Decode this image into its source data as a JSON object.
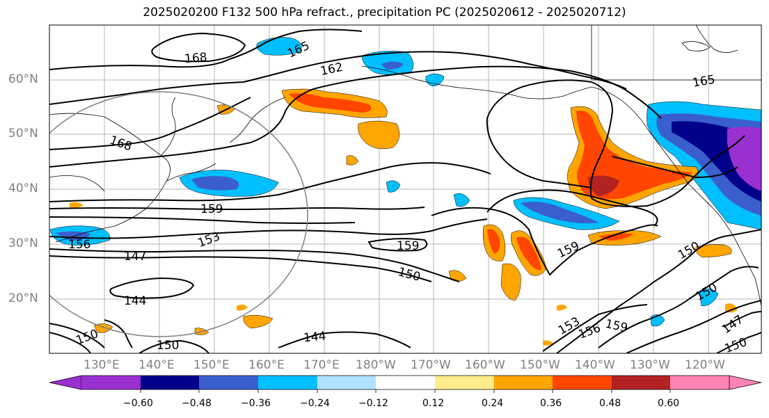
{
  "title": "2025020200 F132 500 hPa refract., precipitation PC (2025020612 - 2025020712)",
  "lat_labels": [
    "60°N",
    "50°N",
    "40°N",
    "30°N",
    "20°N"
  ],
  "lon_labels": [
    "130°E",
    "140°E",
    "150°E",
    "160°E",
    "170°E",
    "180°W",
    "170°W",
    "160°W",
    "150°W",
    "140°W",
    "130°W",
    "120°W"
  ],
  "contour_labels": [
    "168",
    "165",
    "162",
    "168",
    "165",
    "159",
    "153",
    "156",
    "147",
    "159",
    "159",
    "150",
    "150",
    "150",
    "144",
    "144",
    "150",
    "153",
    "156",
    "159",
    "147",
    "150",
    "150"
  ],
  "colorbar": {
    "colors": [
      "#9b30d0",
      "#00008b",
      "#3a5fcd",
      "#00bfff",
      "#b0e2ff",
      "#ffffff",
      "#ffec8b",
      "#ffa500",
      "#ff4500",
      "#b22222",
      "#ff83b4"
    ],
    "ticks": [
      "−0.60",
      "−0.48",
      "−0.36",
      "−0.24",
      "−0.12",
      "0.12",
      "0.24",
      "0.36",
      "0.48",
      "0.60"
    ]
  }
}
